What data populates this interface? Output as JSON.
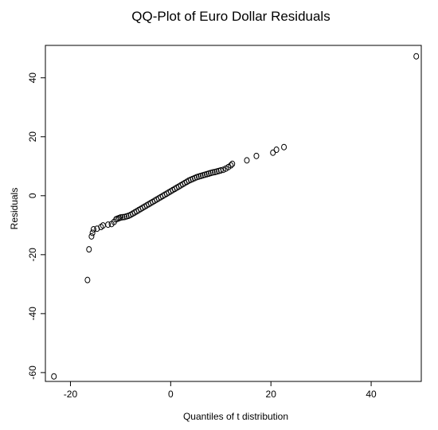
{
  "chart_data": {
    "type": "scatter",
    "title": "QQ-Plot of Euro Dollar Residuals",
    "xlabel": "Quantiles of t distribution",
    "ylabel": "Residuals",
    "xlim": [
      -25,
      50
    ],
    "ylim": [
      -63,
      51
    ],
    "xticks": [
      -20,
      0,
      20,
      40
    ],
    "yticks": [
      -60,
      -40,
      -20,
      0,
      20,
      40
    ],
    "xtick_labels": [
      "-20",
      "0",
      "20",
      "40"
    ],
    "ytick_labels": [
      "-60",
      "-40",
      "-20",
      "0",
      "20",
      "40"
    ],
    "marker": "open-circle",
    "grid": false,
    "series": [
      {
        "x": [
          -23.3,
          -16.6,
          -16.3,
          -15.8,
          -15.6,
          -15.4,
          -14.7,
          -13.9,
          -13.5,
          -12.5,
          -11.8,
          -11.3,
          -10.9,
          -10.6,
          -10.3,
          -10.0,
          -9.6,
          -9.2,
          -8.8,
          -8.4,
          -8.0,
          -7.6,
          -7.2,
          -6.8,
          -6.4,
          -6.0,
          -5.6,
          -5.2,
          -4.8,
          -4.4,
          -4.0,
          -3.6,
          -3.2,
          -2.8,
          -2.4,
          -2.0,
          -1.6,
          -1.2,
          -0.8,
          -0.4,
          0.0,
          0.4,
          0.8,
          1.2,
          1.6,
          2.0,
          2.4,
          2.8,
          3.2,
          3.6,
          4.0,
          4.4,
          4.8,
          5.2,
          5.6,
          6.0,
          6.4,
          6.8,
          7.2,
          7.6,
          8.0,
          8.4,
          8.8,
          9.2,
          9.6,
          10.0,
          10.5,
          11.0,
          11.5,
          12.0,
          12.3,
          15.2,
          17.1,
          20.4,
          21.1,
          22.6,
          49.0
        ],
        "y": [
          -61.3,
          -28.6,
          -18.2,
          -13.8,
          -12.6,
          -11.4,
          -11.2,
          -10.6,
          -10.1,
          -9.8,
          -9.6,
          -8.9,
          -8.0,
          -7.8,
          -7.6,
          -7.4,
          -7.3,
          -7.2,
          -7.0,
          -6.8,
          -6.5,
          -6.1,
          -5.7,
          -5.3,
          -4.9,
          -4.5,
          -4.1,
          -3.7,
          -3.3,
          -2.9,
          -2.5,
          -2.1,
          -1.7,
          -1.3,
          -0.9,
          -0.5,
          -0.1,
          0.3,
          0.7,
          1.1,
          1.5,
          1.9,
          2.3,
          2.7,
          3.1,
          3.5,
          3.9,
          4.3,
          4.7,
          5.1,
          5.4,
          5.7,
          6.0,
          6.3,
          6.5,
          6.7,
          6.9,
          7.1,
          7.3,
          7.5,
          7.7,
          7.9,
          8.0,
          8.2,
          8.4,
          8.6,
          8.8,
          9.2,
          9.7,
          10.3,
          10.8,
          12.0,
          13.5,
          14.6,
          15.6,
          16.5,
          47.3
        ]
      }
    ]
  }
}
